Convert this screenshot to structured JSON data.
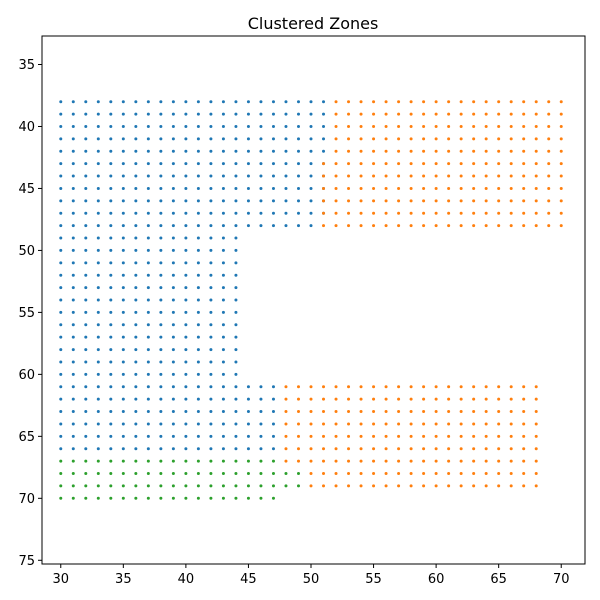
{
  "chart_data": {
    "type": "scatter",
    "title": "Clustered Zones",
    "xlabel": "",
    "ylabel": "",
    "xlim": [
      28.5,
      71.9
    ],
    "ylim": [
      75.3,
      32.7
    ],
    "y_inverted": true,
    "grid": false,
    "xticks": [
      30,
      35,
      40,
      45,
      50,
      55,
      60,
      65,
      70
    ],
    "yticks": [
      35,
      40,
      45,
      50,
      55,
      60,
      65,
      70,
      75
    ],
    "series": [
      {
        "color": "#1f77b4",
        "regions": [
          {
            "x": [
              30,
              51
            ],
            "y": [
              38,
              47
            ]
          },
          {
            "x": [
              30,
              50
            ],
            "y": [
              48,
              48
            ]
          },
          {
            "x": [
              30,
              44
            ],
            "y": [
              49,
              60
            ]
          },
          {
            "x": [
              30,
              47
            ],
            "y": [
              61,
              66
            ]
          }
        ]
      },
      {
        "color": "#ff7f0e",
        "regions": [
          {
            "x": [
              52,
              70
            ],
            "y": [
              38,
              42
            ]
          },
          {
            "x": [
              51,
              70
            ],
            "y": [
              43,
              48
            ]
          },
          {
            "x": [
              48,
              68
            ],
            "y": [
              61,
              67
            ]
          },
          {
            "x": [
              50,
              68
            ],
            "y": [
              68,
              69
            ]
          }
        ]
      },
      {
        "color": "#2ca02c",
        "regions": [
          {
            "x": [
              30,
              47
            ],
            "y": [
              67,
              67
            ]
          },
          {
            "x": [
              30,
              49
            ],
            "y": [
              68,
              69
            ]
          },
          {
            "x": [
              30,
              47
            ],
            "y": [
              70,
              70
            ]
          }
        ]
      }
    ]
  }
}
